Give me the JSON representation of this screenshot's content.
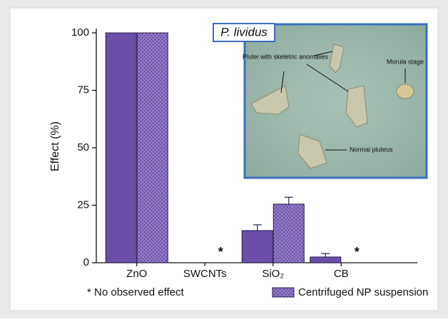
{
  "chart_data": {
    "type": "bar",
    "ylabel": "Effect (%)",
    "categories": [
      "ZnO",
      "SWCNTs",
      "SiO₂",
      "CB"
    ],
    "series": [
      {
        "color": "#6a4ea8",
        "hatch": false,
        "values": [
          100,
          null,
          14,
          2.5
        ],
        "errors": [
          null,
          null,
          2.5,
          1.5
        ]
      },
      {
        "name": "Centrifuged NP suspension",
        "color": "#6a4ea8",
        "hatch": true,
        "values": [
          100,
          null,
          25.5,
          null
        ],
        "errors": [
          null,
          null,
          3,
          null
        ]
      }
    ],
    "annotations": [
      {
        "text": "*",
        "category": "SWCNTs"
      },
      {
        "text": "*",
        "category": "CB"
      }
    ],
    "note": "* No observed effect",
    "ylim": [
      0,
      100
    ],
    "yticks": [
      0,
      25,
      50,
      75,
      100
    ],
    "inset": {
      "title": "P. lividus",
      "labels": [
        "Plutei with skeletric anomalies",
        "Morula stage",
        "Normal pluteus"
      ]
    }
  }
}
